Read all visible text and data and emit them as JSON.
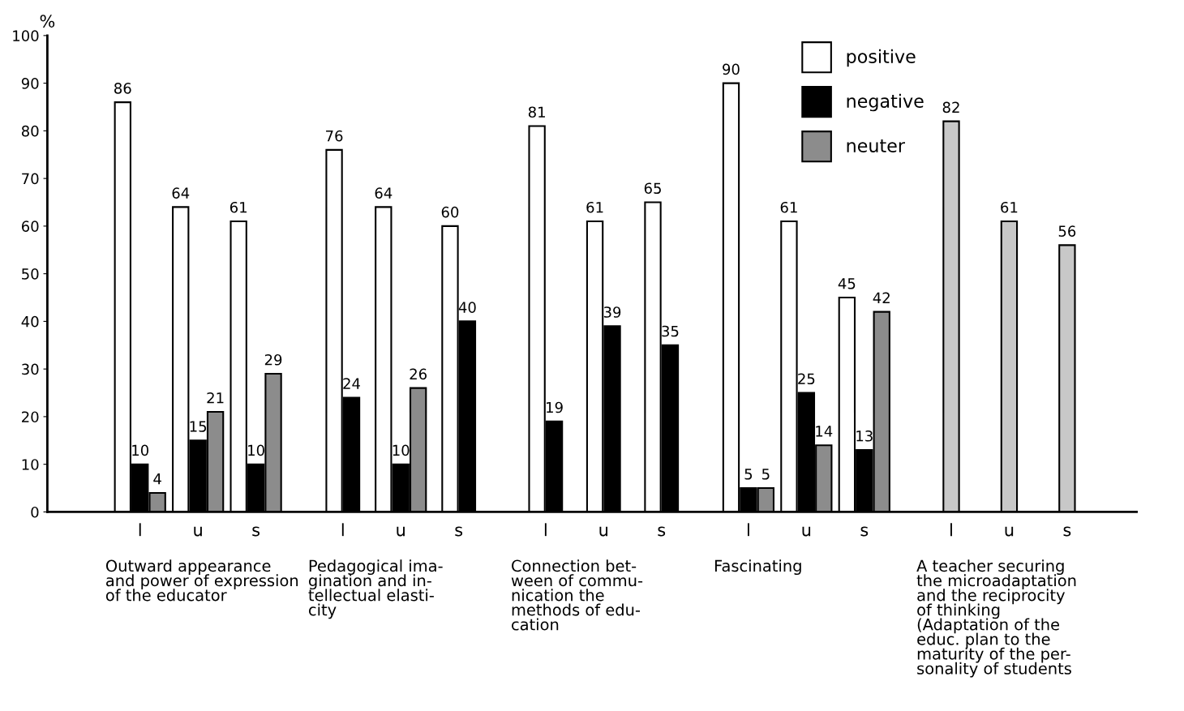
{
  "chart_data": {
    "type": "bar",
    "categories": [
      "l",
      "u",
      "s",
      "l",
      "u",
      "s",
      "l",
      "u",
      "s",
      "l",
      "u",
      "s",
      "l",
      "u",
      "s"
    ],
    "series": [
      {
        "name": "positive",
        "color": "#ffffff",
        "values": [
          86,
          64,
          61,
          76,
          64,
          60,
          81,
          61,
          65,
          90,
          61,
          45,
          null,
          null,
          null
        ]
      },
      {
        "name": "negative",
        "color": "#000000",
        "values": [
          10,
          15,
          10,
          24,
          10,
          40,
          19,
          39,
          35,
          5,
          25,
          13,
          null,
          null,
          null
        ]
      },
      {
        "name": "neuter",
        "color": "#8c8c8c",
        "values": [
          4,
          21,
          29,
          null,
          26,
          null,
          null,
          null,
          null,
          5,
          14,
          42,
          null,
          null,
          null
        ]
      },
      {
        "color": "#c8c8c8",
        "values": [
          null,
          null,
          null,
          null,
          null,
          null,
          null,
          null,
          null,
          null,
          null,
          null,
          82,
          61,
          56
        ]
      }
    ],
    "ylabel": "%",
    "ylim": [
      0,
      100
    ],
    "yticks": [
      0,
      10,
      20,
      30,
      40,
      50,
      60,
      70,
      80,
      90,
      100
    ],
    "data_labels": true,
    "grid": false,
    "legend": "top right",
    "annotations": [
      "Outward appearance\nand power of expression\nof the educator",
      "Pedagogical ima-\ngination and in-\ntellectual elasti-\ncity",
      "Connection bet-\nween of commu-\nnication the\nmethods of edu-\ncation",
      "Fascinating",
      "A teacher securing\nthe microadaptation\nand the reciprocity\nof thinking\n(Adaptation of the\neduc. plan to the\nmaturity of the per-\nsonality of students"
    ]
  }
}
